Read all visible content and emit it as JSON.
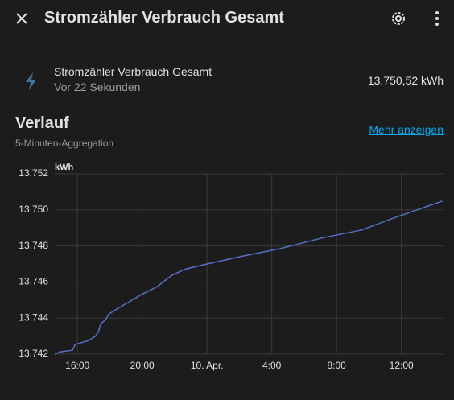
{
  "header": {
    "title": "Stromzähler Verbrauch Gesamt"
  },
  "entity": {
    "name": "Stromzähler Verbrauch Gesamt",
    "last_changed": "Vor 22 Sekunden",
    "state": "13.750,52 kWh"
  },
  "history": {
    "title": "Verlauf",
    "subtitle": "5-Minuten-Aggregation",
    "more_link": "Mehr anzeigen"
  },
  "chart_data": {
    "type": "line",
    "y_label": "kWh",
    "color": "#5470c6",
    "grid": true,
    "x": [
      14.61,
      14.96,
      15.7,
      15.85,
      16.7,
      17.1,
      17.3,
      17.44,
      17.74,
      17.94,
      18.58,
      19.08,
      19.92,
      20.91,
      21.81,
      22.65,
      23.64,
      26.12,
      28.6,
      31.09,
      33.57,
      35.55,
      38.53
    ],
    "values": [
      13742.0,
      13742.13,
      13742.22,
      13742.53,
      13742.76,
      13742.98,
      13743.24,
      13743.69,
      13743.91,
      13744.22,
      13744.58,
      13744.84,
      13745.29,
      13745.73,
      13746.36,
      13746.71,
      13746.93,
      13747.42,
      13747.87,
      13748.44,
      13748.89,
      13749.56,
      13750.49
    ],
    "xlim": [
      14.6,
      38.55
    ],
    "xticks": [
      {
        "value": 16,
        "label": "16:00"
      },
      {
        "value": 20,
        "label": "20:00"
      },
      {
        "value": 24,
        "label": "10. Apr."
      },
      {
        "value": 28,
        "label": "4:00"
      },
      {
        "value": 32,
        "label": "8:00"
      },
      {
        "value": 36,
        "label": "12:00"
      }
    ],
    "ylim": [
      13742,
      13752
    ],
    "yticks": [
      {
        "value": 13742,
        "label": "13.742"
      },
      {
        "value": 13744,
        "label": "13.744"
      },
      {
        "value": 13746,
        "label": "13.746"
      },
      {
        "value": 13748,
        "label": "13.748"
      },
      {
        "value": 13750,
        "label": "13.750"
      },
      {
        "value": 13752,
        "label": "13.752"
      }
    ]
  }
}
